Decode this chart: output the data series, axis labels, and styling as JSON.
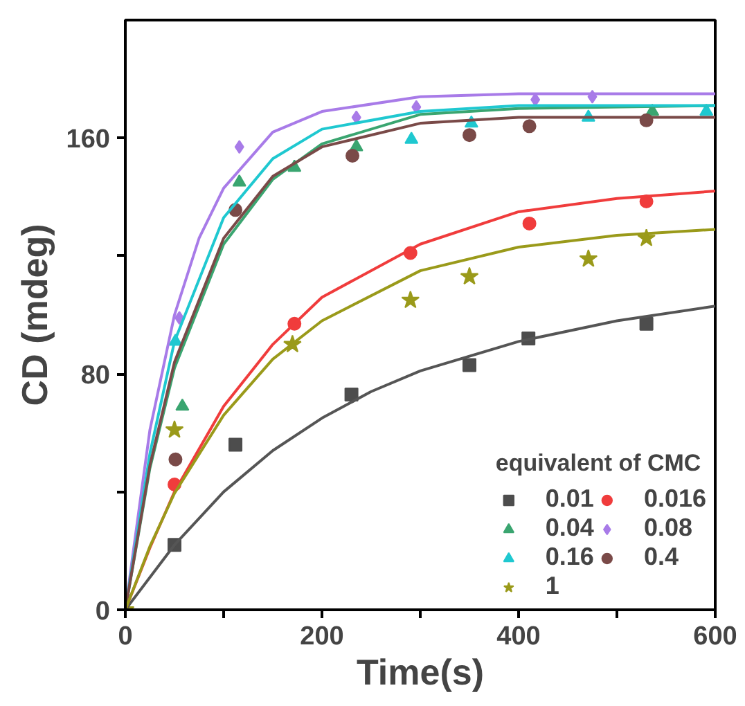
{
  "chart_data": {
    "type": "scatter",
    "xlabel": "Time(s)",
    "ylabel": "CD (mdeg)",
    "legend_title": "equivalent of CMC",
    "xlim": [
      0,
      600
    ],
    "ylim": [
      0,
      200
    ],
    "xticks": [
      0,
      {
        "value": 100,
        "label": null
      },
      200,
      {
        "value": 300,
        "label": null
      },
      400,
      {
        "value": 500,
        "label": null
      },
      600
    ],
    "yticks": [
      0,
      {
        "value": 40,
        "label": null
      },
      80,
      {
        "value": 120,
        "label": null
      },
      160
    ],
    "grid": false,
    "legend": "bottom right",
    "series": [
      {
        "name": "0.01",
        "marker": "square",
        "color": "#4d4d4d",
        "x": [
          50,
          112,
          230,
          350,
          410,
          530
        ],
        "values": [
          22,
          56,
          73,
          83,
          92,
          97
        ]
      },
      {
        "name": "0.016",
        "marker": "circle",
        "color": "#f03c3c",
        "x": [
          50,
          172,
          290,
          411,
          530
        ],
        "values": [
          42.5,
          97,
          121,
          131,
          138.5
        ]
      },
      {
        "name": "0.04",
        "marker": "triangle",
        "color": "#3aa570",
        "x": [
          58,
          116,
          172,
          235,
          536
        ],
        "values": [
          69,
          145,
          150,
          157,
          169
        ]
      },
      {
        "name": "0.08",
        "marker": "diamond",
        "color": "#a87be8",
        "x": [
          55,
          116,
          235,
          296,
          417,
          475
        ],
        "values": [
          99,
          157,
          167,
          170.5,
          173,
          174
        ]
      },
      {
        "name": "0.16",
        "marker": "triangle",
        "color": "#1fc8d0",
        "x": [
          51,
          291,
          352,
          471,
          591
        ],
        "values": [
          91,
          159.5,
          165,
          167,
          169
        ]
      },
      {
        "name": "0.4",
        "marker": "circle",
        "color": "#7a4a48",
        "x": [
          51,
          112,
          231,
          350,
          411,
          530
        ],
        "values": [
          51,
          135.6,
          154,
          161,
          164,
          166
        ]
      },
      {
        "name": "1",
        "marker": "star",
        "color": "#9a9a1a",
        "x": [
          0,
          50,
          170,
          290,
          350,
          471,
          530
        ],
        "values": [
          0,
          61,
          90,
          105,
          113,
          119,
          126
        ]
      },
      {
        "type": "line",
        "color": "#555555",
        "x": [
          0,
          50,
          100,
          150,
          200,
          250,
          300,
          400,
          500,
          600
        ],
        "values": [
          0,
          22,
          40,
          54,
          65,
          74,
          81,
          91,
          98,
          103
        ]
      },
      {
        "type": "line",
        "color": "#f03c3c",
        "x": [
          0,
          25,
          50,
          100,
          150,
          200,
          300,
          400,
          500,
          600
        ],
        "values": [
          0,
          21,
          40,
          69,
          90,
          106,
          124,
          135,
          139.5,
          142
        ]
      },
      {
        "type": "line",
        "color": "#3aa570",
        "x": [
          0,
          25,
          50,
          100,
          150,
          200,
          300,
          400,
          600
        ],
        "values": [
          0,
          48,
          82,
          124,
          146,
          158,
          168,
          170,
          171
        ]
      },
      {
        "type": "line",
        "color": "#a87be8",
        "x": [
          0,
          25,
          50,
          75,
          100,
          150,
          200,
          300,
          400,
          600
        ],
        "values": [
          0,
          61,
          100,
          126,
          143,
          162,
          169,
          174,
          175,
          175
        ]
      },
      {
        "type": "line",
        "color": "#1fc8d0",
        "x": [
          0,
          25,
          50,
          100,
          150,
          200,
          300,
          400,
          600
        ],
        "values": [
          0,
          53,
          91,
          133,
          153,
          163,
          169,
          171,
          171
        ]
      },
      {
        "type": "line",
        "color": "#7a4a48",
        "x": [
          0,
          25,
          50,
          100,
          150,
          200,
          300,
          400,
          600
        ],
        "values": [
          0,
          49,
          84,
          126,
          147,
          157,
          165,
          167,
          167
        ]
      },
      {
        "type": "line",
        "color": "#9a9a1a",
        "x": [
          0,
          25,
          50,
          100,
          150,
          200,
          300,
          400,
          500,
          600
        ],
        "values": [
          0,
          21.5,
          39.5,
          66,
          85,
          98,
          115,
          123,
          127,
          129
        ]
      }
    ]
  }
}
